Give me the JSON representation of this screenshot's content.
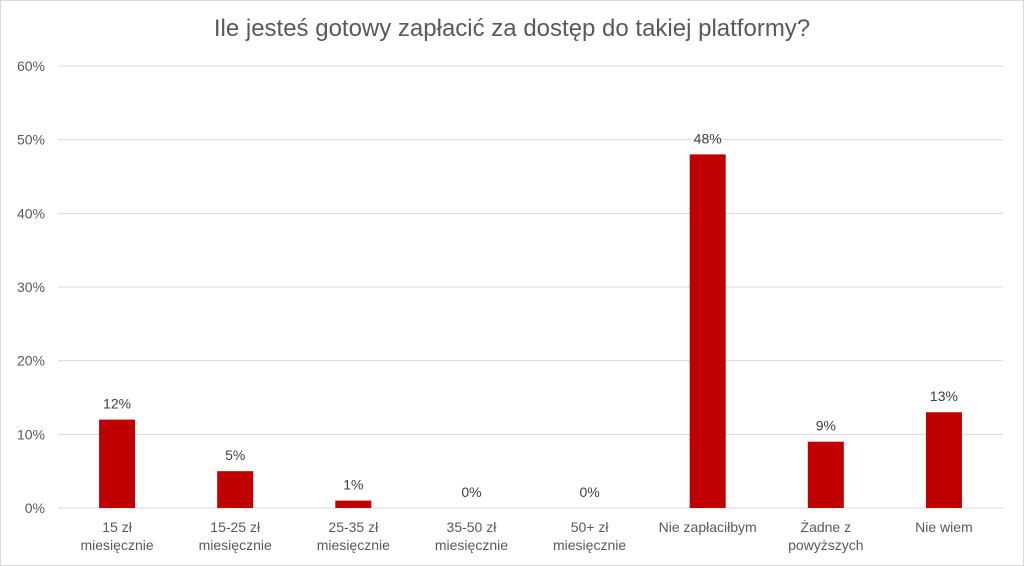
{
  "chart_data": {
    "type": "bar",
    "title": "Ile jesteś gotowy zapłacić za dostęp do takiej platformy?",
    "categories": [
      [
        "15 zł",
        "miesięcznie"
      ],
      [
        "15-25 zł",
        "miesięcznie"
      ],
      [
        "25-35 zł",
        "miesięcznie"
      ],
      [
        "35-50 zł",
        "miesięcznie"
      ],
      [
        "50+ zł",
        "miesięcznie"
      ],
      [
        "Nie zapłaciłbym"
      ],
      [
        "Żadne z",
        "powyższych"
      ],
      [
        "Nie wiem"
      ]
    ],
    "values": [
      12,
      5,
      1,
      0,
      0,
      48,
      9,
      13
    ],
    "data_labels": [
      "12%",
      "5%",
      "1%",
      "0%",
      "0%",
      "48%",
      "9%",
      "13%"
    ],
    "yticks": [
      0,
      10,
      20,
      30,
      40,
      50,
      60
    ],
    "ytick_labels": [
      "0%",
      "10%",
      "20%",
      "30%",
      "40%",
      "50%",
      "60%"
    ],
    "ylim": [
      0,
      60
    ],
    "xlabel": "",
    "ylabel": "",
    "grid": true,
    "legend": "none",
    "bar_color": "#c00000",
    "grid_color": "#d9d9d9"
  }
}
